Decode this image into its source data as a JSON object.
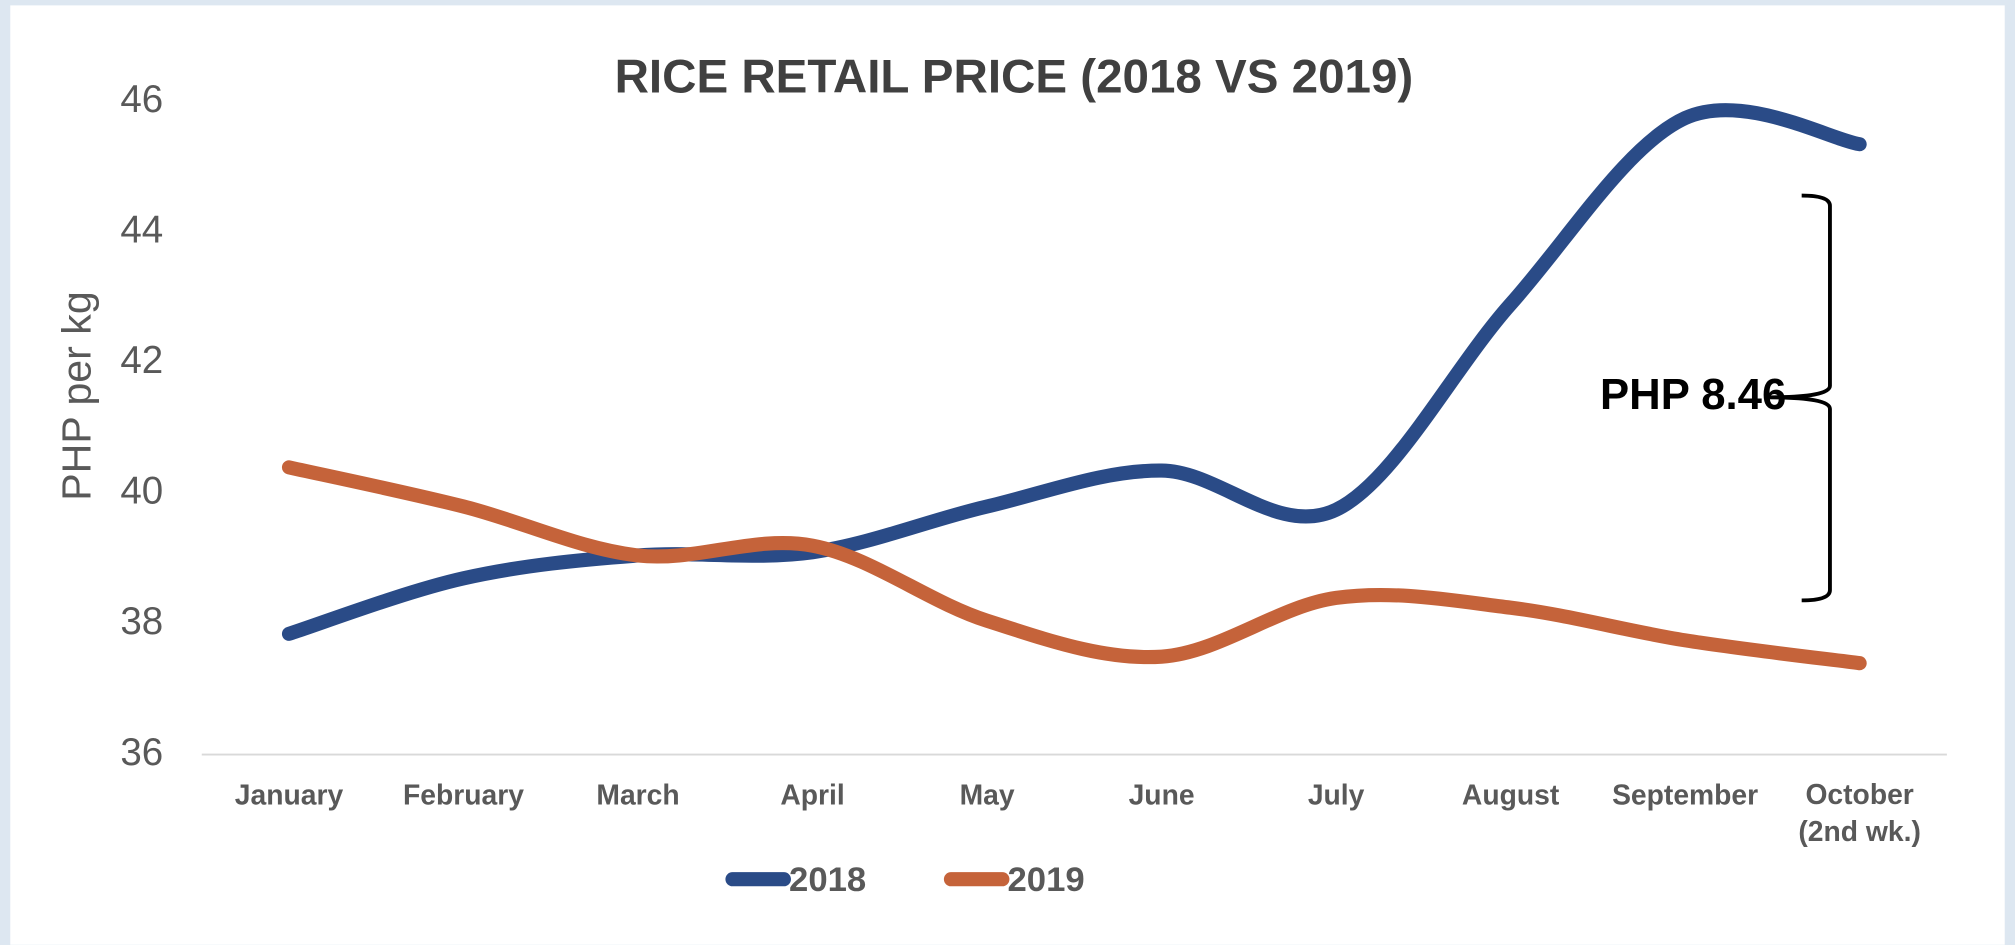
{
  "chart_data": {
    "type": "line",
    "title": "RICE RETAIL PRICE (2018 VS 2019)",
    "ylabel": "PHP per kg",
    "categories": [
      "January",
      "February",
      "March",
      "April",
      "May",
      "June",
      "July",
      "August",
      "September",
      "October (2nd wk.)"
    ],
    "series": [
      {
        "name": "2018",
        "color": "#2a4b87",
        "values": [
          37.85,
          38.7,
          39.05,
          39.1,
          39.8,
          40.35,
          39.75,
          42.9,
          45.75,
          45.35
        ]
      },
      {
        "name": "2019",
        "color": "#c5633a",
        "values": [
          40.4,
          39.8,
          39.05,
          39.2,
          38.05,
          37.5,
          38.4,
          38.25,
          37.75,
          37.4
        ]
      }
    ],
    "ylim": [
      36,
      46
    ],
    "yticks": [
      36,
      38,
      40,
      42,
      44,
      46
    ],
    "annotation": "PHP 8.46",
    "legend": "bottom"
  }
}
